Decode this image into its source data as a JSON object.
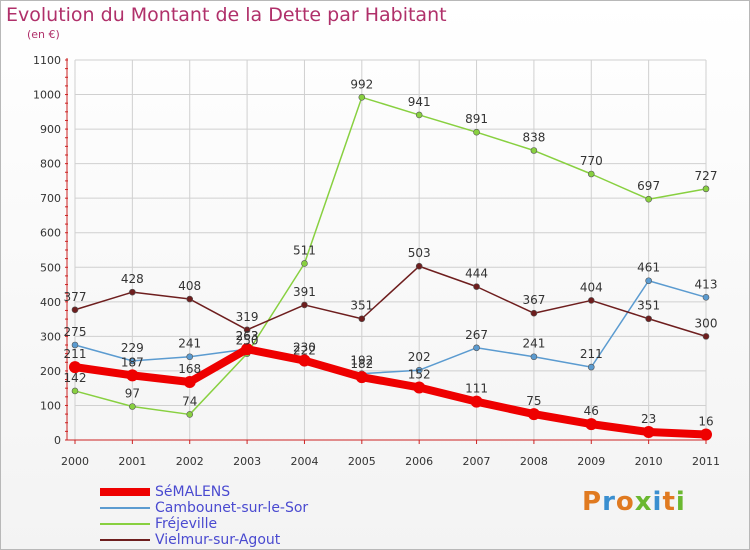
{
  "title": "Evolution du Montant de la Dette par Habitant",
  "subtitle": "(en €)",
  "logo_text": "Proxiti",
  "colors": {
    "title": "#b0306a",
    "axis": "#cc2222",
    "grid": "#d0d0d0",
    "legend_text": "#4a4ad0"
  },
  "chart_data": {
    "type": "line",
    "x": [
      "2000",
      "2001",
      "2002",
      "2003",
      "2004",
      "2005",
      "2006",
      "2007",
      "2008",
      "2009",
      "2010",
      "2011"
    ],
    "y_ticks": [
      "0",
      "100",
      "200",
      "300",
      "400",
      "500",
      "600",
      "700",
      "800",
      "900",
      "1000",
      "1100"
    ],
    "ylim": [
      0,
      1100
    ],
    "grid": true,
    "legend_position": "bottom-left",
    "series": [
      {
        "name": "SéMALENS",
        "color": "#ee0000",
        "emphasis": true,
        "values": [
          211,
          187,
          168,
          263,
          230,
          182,
          152,
          111,
          75,
          46,
          23,
          16
        ]
      },
      {
        "name": "Cambounet-sur-le-Sor",
        "color": "#5b9bd0",
        "emphasis": false,
        "values": [
          275,
          229,
          241,
          263,
          222,
          192,
          202,
          267,
          241,
          211,
          461,
          413
        ]
      },
      {
        "name": "Fréjeville",
        "color": "#88d040",
        "emphasis": false,
        "values": [
          142,
          97,
          74,
          250,
          511,
          992,
          941,
          891,
          838,
          770,
          697,
          727
        ]
      },
      {
        "name": "Vielmur-sur-Agout",
        "color": "#6e1e1e",
        "emphasis": false,
        "values": [
          377,
          428,
          408,
          319,
          391,
          351,
          503,
          444,
          367,
          404,
          351,
          300
        ]
      }
    ]
  }
}
